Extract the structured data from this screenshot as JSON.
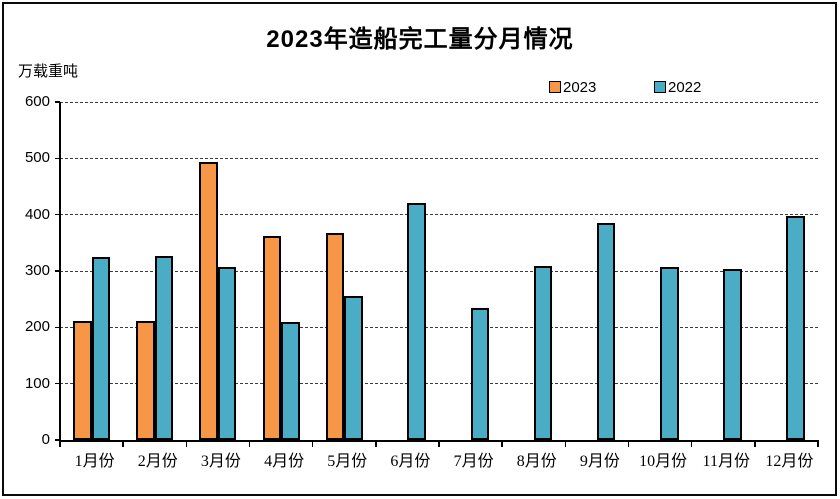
{
  "chart_data": {
    "type": "bar",
    "title": "2023年造船完工量分月情况",
    "unit_label": "万载重吨",
    "categories": [
      "1月份",
      "2月份",
      "3月份",
      "4月份",
      "5月份",
      "6月份",
      "7月份",
      "8月份",
      "9月份",
      "10月份",
      "11月份",
      "12月份"
    ],
    "series": [
      {
        "name": "2023",
        "color": "#F79646",
        "values": [
          212,
          212,
          493,
          363,
          367,
          null,
          null,
          null,
          null,
          null,
          null,
          null
        ]
      },
      {
        "name": "2022",
        "color": "#4BACC6",
        "values": [
          325,
          327,
          307,
          210,
          256,
          421,
          235,
          308,
          385,
          307,
          303,
          397
        ]
      }
    ],
    "ylim": [
      0,
      600
    ],
    "yticks": [
      0,
      100,
      200,
      300,
      400,
      500,
      600
    ],
    "grid": "horizontal-dashed",
    "legend_position": "top-right",
    "bar_border_color": "#000000",
    "background_color": "#ffffff"
  }
}
